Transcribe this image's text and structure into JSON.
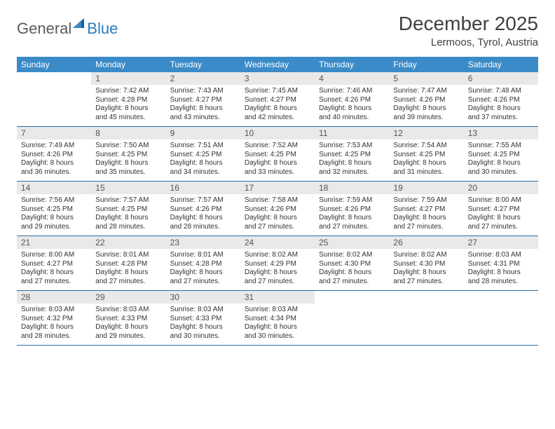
{
  "logo": {
    "general": "General",
    "blue": "Blue"
  },
  "title": "December 2025",
  "location": "Lermoos, Tyrol, Austria",
  "colors": {
    "header_bg": "#3b8bc8",
    "header_text": "#ffffff",
    "daynum_bg": "#e9e9e9",
    "row_border": "#2d6da3",
    "body_text": "#333333",
    "title_text": "#404040",
    "logo_gray": "#5a5a5a",
    "logo_blue": "#2b7bbf",
    "page_bg": "#ffffff"
  },
  "typography": {
    "title_fontsize": 28,
    "location_fontsize": 15,
    "header_fontsize": 12,
    "daynum_fontsize": 12,
    "cell_fontsize": 10
  },
  "weekday_headers": [
    "Sunday",
    "Monday",
    "Tuesday",
    "Wednesday",
    "Thursday",
    "Friday",
    "Saturday"
  ],
  "weeks": [
    [
      {
        "day": "",
        "sunrise": "",
        "sunset": "",
        "daylight": ""
      },
      {
        "day": "1",
        "sunrise": "Sunrise: 7:42 AM",
        "sunset": "Sunset: 4:28 PM",
        "daylight": "Daylight: 8 hours and 45 minutes."
      },
      {
        "day": "2",
        "sunrise": "Sunrise: 7:43 AM",
        "sunset": "Sunset: 4:27 PM",
        "daylight": "Daylight: 8 hours and 43 minutes."
      },
      {
        "day": "3",
        "sunrise": "Sunrise: 7:45 AM",
        "sunset": "Sunset: 4:27 PM",
        "daylight": "Daylight: 8 hours and 42 minutes."
      },
      {
        "day": "4",
        "sunrise": "Sunrise: 7:46 AM",
        "sunset": "Sunset: 4:26 PM",
        "daylight": "Daylight: 8 hours and 40 minutes."
      },
      {
        "day": "5",
        "sunrise": "Sunrise: 7:47 AM",
        "sunset": "Sunset: 4:26 PM",
        "daylight": "Daylight: 8 hours and 39 minutes."
      },
      {
        "day": "6",
        "sunrise": "Sunrise: 7:48 AM",
        "sunset": "Sunset: 4:26 PM",
        "daylight": "Daylight: 8 hours and 37 minutes."
      }
    ],
    [
      {
        "day": "7",
        "sunrise": "Sunrise: 7:49 AM",
        "sunset": "Sunset: 4:26 PM",
        "daylight": "Daylight: 8 hours and 36 minutes."
      },
      {
        "day": "8",
        "sunrise": "Sunrise: 7:50 AM",
        "sunset": "Sunset: 4:25 PM",
        "daylight": "Daylight: 8 hours and 35 minutes."
      },
      {
        "day": "9",
        "sunrise": "Sunrise: 7:51 AM",
        "sunset": "Sunset: 4:25 PM",
        "daylight": "Daylight: 8 hours and 34 minutes."
      },
      {
        "day": "10",
        "sunrise": "Sunrise: 7:52 AM",
        "sunset": "Sunset: 4:25 PM",
        "daylight": "Daylight: 8 hours and 33 minutes."
      },
      {
        "day": "11",
        "sunrise": "Sunrise: 7:53 AM",
        "sunset": "Sunset: 4:25 PM",
        "daylight": "Daylight: 8 hours and 32 minutes."
      },
      {
        "day": "12",
        "sunrise": "Sunrise: 7:54 AM",
        "sunset": "Sunset: 4:25 PM",
        "daylight": "Daylight: 8 hours and 31 minutes."
      },
      {
        "day": "13",
        "sunrise": "Sunrise: 7:55 AM",
        "sunset": "Sunset: 4:25 PM",
        "daylight": "Daylight: 8 hours and 30 minutes."
      }
    ],
    [
      {
        "day": "14",
        "sunrise": "Sunrise: 7:56 AM",
        "sunset": "Sunset: 4:25 PM",
        "daylight": "Daylight: 8 hours and 29 minutes."
      },
      {
        "day": "15",
        "sunrise": "Sunrise: 7:57 AM",
        "sunset": "Sunset: 4:25 PM",
        "daylight": "Daylight: 8 hours and 28 minutes."
      },
      {
        "day": "16",
        "sunrise": "Sunrise: 7:57 AM",
        "sunset": "Sunset: 4:26 PM",
        "daylight": "Daylight: 8 hours and 28 minutes."
      },
      {
        "day": "17",
        "sunrise": "Sunrise: 7:58 AM",
        "sunset": "Sunset: 4:26 PM",
        "daylight": "Daylight: 8 hours and 27 minutes."
      },
      {
        "day": "18",
        "sunrise": "Sunrise: 7:59 AM",
        "sunset": "Sunset: 4:26 PM",
        "daylight": "Daylight: 8 hours and 27 minutes."
      },
      {
        "day": "19",
        "sunrise": "Sunrise: 7:59 AM",
        "sunset": "Sunset: 4:27 PM",
        "daylight": "Daylight: 8 hours and 27 minutes."
      },
      {
        "day": "20",
        "sunrise": "Sunrise: 8:00 AM",
        "sunset": "Sunset: 4:27 PM",
        "daylight": "Daylight: 8 hours and 27 minutes."
      }
    ],
    [
      {
        "day": "21",
        "sunrise": "Sunrise: 8:00 AM",
        "sunset": "Sunset: 4:27 PM",
        "daylight": "Daylight: 8 hours and 27 minutes."
      },
      {
        "day": "22",
        "sunrise": "Sunrise: 8:01 AM",
        "sunset": "Sunset: 4:28 PM",
        "daylight": "Daylight: 8 hours and 27 minutes."
      },
      {
        "day": "23",
        "sunrise": "Sunrise: 8:01 AM",
        "sunset": "Sunset: 4:28 PM",
        "daylight": "Daylight: 8 hours and 27 minutes."
      },
      {
        "day": "24",
        "sunrise": "Sunrise: 8:02 AM",
        "sunset": "Sunset: 4:29 PM",
        "daylight": "Daylight: 8 hours and 27 minutes."
      },
      {
        "day": "25",
        "sunrise": "Sunrise: 8:02 AM",
        "sunset": "Sunset: 4:30 PM",
        "daylight": "Daylight: 8 hours and 27 minutes."
      },
      {
        "day": "26",
        "sunrise": "Sunrise: 8:02 AM",
        "sunset": "Sunset: 4:30 PM",
        "daylight": "Daylight: 8 hours and 27 minutes."
      },
      {
        "day": "27",
        "sunrise": "Sunrise: 8:03 AM",
        "sunset": "Sunset: 4:31 PM",
        "daylight": "Daylight: 8 hours and 28 minutes."
      }
    ],
    [
      {
        "day": "28",
        "sunrise": "Sunrise: 8:03 AM",
        "sunset": "Sunset: 4:32 PM",
        "daylight": "Daylight: 8 hours and 28 minutes."
      },
      {
        "day": "29",
        "sunrise": "Sunrise: 8:03 AM",
        "sunset": "Sunset: 4:33 PM",
        "daylight": "Daylight: 8 hours and 29 minutes."
      },
      {
        "day": "30",
        "sunrise": "Sunrise: 8:03 AM",
        "sunset": "Sunset: 4:33 PM",
        "daylight": "Daylight: 8 hours and 30 minutes."
      },
      {
        "day": "31",
        "sunrise": "Sunrise: 8:03 AM",
        "sunset": "Sunset: 4:34 PM",
        "daylight": "Daylight: 8 hours and 30 minutes."
      },
      {
        "day": "",
        "sunrise": "",
        "sunset": "",
        "daylight": ""
      },
      {
        "day": "",
        "sunrise": "",
        "sunset": "",
        "daylight": ""
      },
      {
        "day": "",
        "sunrise": "",
        "sunset": "",
        "daylight": ""
      }
    ]
  ]
}
